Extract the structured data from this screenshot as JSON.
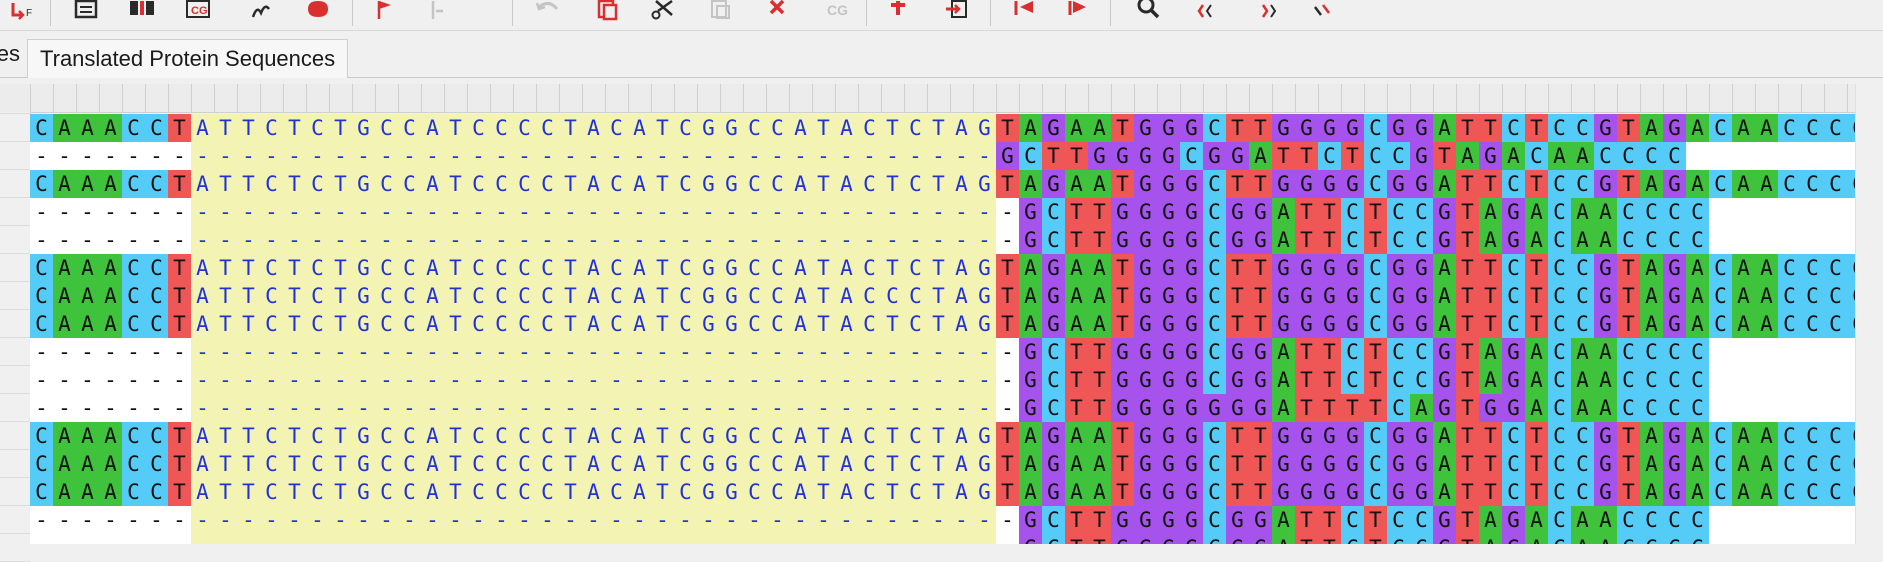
{
  "tabs": {
    "previous_tab_label": "es",
    "active_tab_label": "Translated Protein Sequences"
  },
  "toolbar": {
    "buttons": [
      {
        "name": "first-last-icon"
      },
      {
        "name": "text-document-icon"
      },
      {
        "name": "columns-icon"
      },
      {
        "name": "cg-box-icon"
      },
      {
        "name": "pencil-icon"
      },
      {
        "name": "bag-icon"
      },
      {
        "name": "flag-icon"
      },
      {
        "name": "flag-move-icon"
      },
      {
        "name": "undo-icon"
      },
      {
        "name": "copy-icon"
      },
      {
        "name": "cut-icon"
      },
      {
        "name": "paste-icon"
      },
      {
        "name": "delete-icon"
      },
      {
        "name": "cg-disabled-icon"
      },
      {
        "name": "add-icon"
      },
      {
        "name": "import-icon"
      },
      {
        "name": "align-left-icon"
      },
      {
        "name": "align-right-icon"
      },
      {
        "name": "search-icon"
      },
      {
        "name": "collapse-left-icon"
      },
      {
        "name": "expand-right-icon"
      },
      {
        "name": "filter-icon"
      }
    ]
  },
  "alignment": {
    "colors": {
      "A": "#3fc23c",
      "C": "#55ccf7",
      "G": "#a653ee",
      "T": "#ef5757",
      "gap_bg": "#ffffff",
      "selection_bg": "#f3f4b3",
      "selection_text": "#2233d6",
      "text": "#111111"
    },
    "selection": {
      "start_col": 7,
      "end_col": 41
    },
    "rows": [
      "CAAACCTATTCTCTGCCATCCCCTACATCGGCCATACTCTAGTAGAATGGGCTTGGGGCGGATTCTCCGTAGACAACCCC",
      "------------------------------------------GCTTGGGGCGGATTCTCCGTAGACAACCCC",
      "CAAACCTATTCTCTGCCATCCCCTACATCGGCCATACTCTAGTAGAATGGGCTTGGGGCGGATTCTCCGTAGACAACCCC",
      "-------------------------------------------GCTTGGGGCGGATTCTCCGTAGACAACCCC",
      "-------------------------------------------GCTTGGGGCGGATTCTCCGTAGACAACCCC",
      "CAAACCTATTCTCTGCCATCCCCTACATCGGCCATACTCTAGTAGAATGGGCTTGGGGCGGATTCTCCGTAGACAACCCC",
      "CAAACCTATTCTCTGCCATCCCCTACATCGGCCATACCCTAGTAGAATGGGCTTGGGGCGGATTCTCCGTAGACAACCCC",
      "CAAACCTATTCTCTGCCATCCCCTACATCGGCCATACTCTAGTAGAATGGGCTTGGGGCGGATTCTCCGTAGACAACCCC",
      "-------------------------------------------GCTTGGGGCGGATTCTCCGTAGACAACCCC",
      "-------------------------------------------GCTTGGGGCGGATTCTCCGTAGACAACCCC",
      "-------------------------------------------GCTTGGGGGGGATTTTCAGTGGACAACCCC",
      "CAAACCTATTCTCTGCCATCCCCTACATCGGCCATACTCTAGTAGAATGGGCTTGGGGCGGATTCTCCGTAGACAACCCC",
      "CAAACCTATTCTCTGCCATCCCCTACATCGGCCATACTCTAGTAGAATGGGCTTGGGGCGGATTCTCCGTAGACAACCCC",
      "CAAACCTATTCTCTGCCATCCCCTACATCGGCCATACTCTAGTAGAATGGGCTTGGGGCGGATTCTCCGTAGACAACCCC",
      "-------------------------------------------GCTTGGGGCGGATTCTCCGTAGACAACCCC",
      "-------------------------------------------GCTTGGGGCGGATTCTCCGTAGACAACCCC"
    ]
  }
}
